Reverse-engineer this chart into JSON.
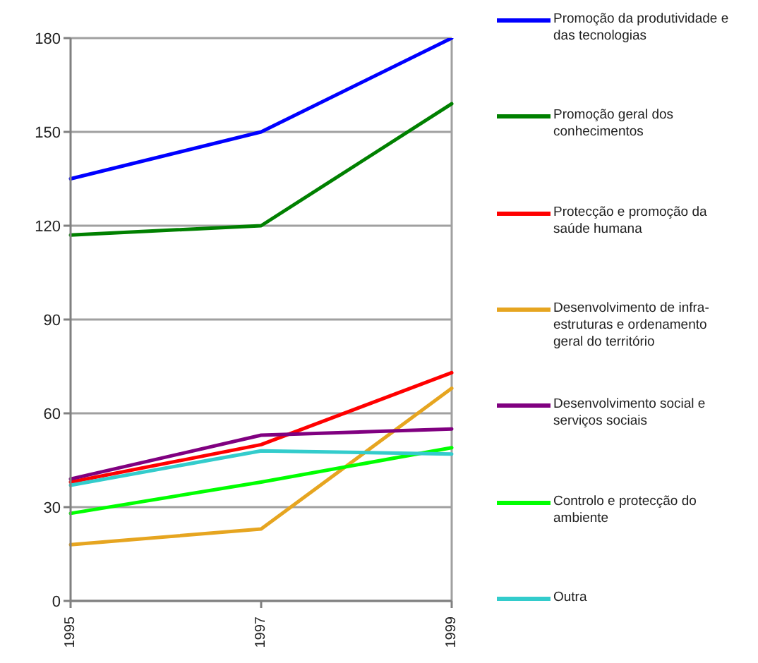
{
  "chart_data": {
    "type": "line",
    "categories": [
      "1995",
      "1997",
      "1999"
    ],
    "series": [
      {
        "name": "Promoção da produtividade e das tecnologias",
        "color": "#0000ff",
        "values": [
          135,
          150,
          180
        ]
      },
      {
        "name": "Promoção geral dos conhecimentos",
        "color": "#008000",
        "values": [
          117,
          120,
          159
        ]
      },
      {
        "name": "Protecção e promoção da saúde humana",
        "color": "#ff0000",
        "values": [
          38,
          50,
          73
        ]
      },
      {
        "name": "Desenvolvimento de infra-estruturas e ordenamento geral do território",
        "color": "#e6a520",
        "values": [
          18,
          23,
          68
        ]
      },
      {
        "name": "Desenvolvimento social e serviços sociais",
        "color": "#800080",
        "values": [
          39,
          53,
          55
        ]
      },
      {
        "name": "Controlo e protecção do ambiente",
        "color": "#00ff00",
        "values": [
          28,
          38,
          49
        ]
      },
      {
        "name": "Outra",
        "color": "#33cccc",
        "values": [
          37,
          48,
          47
        ]
      }
    ],
    "ylim": [
      0,
      180
    ],
    "yticks": [
      0,
      30,
      60,
      90,
      120,
      150,
      180
    ],
    "grid": "y",
    "legend": "right",
    "marker": "none"
  }
}
